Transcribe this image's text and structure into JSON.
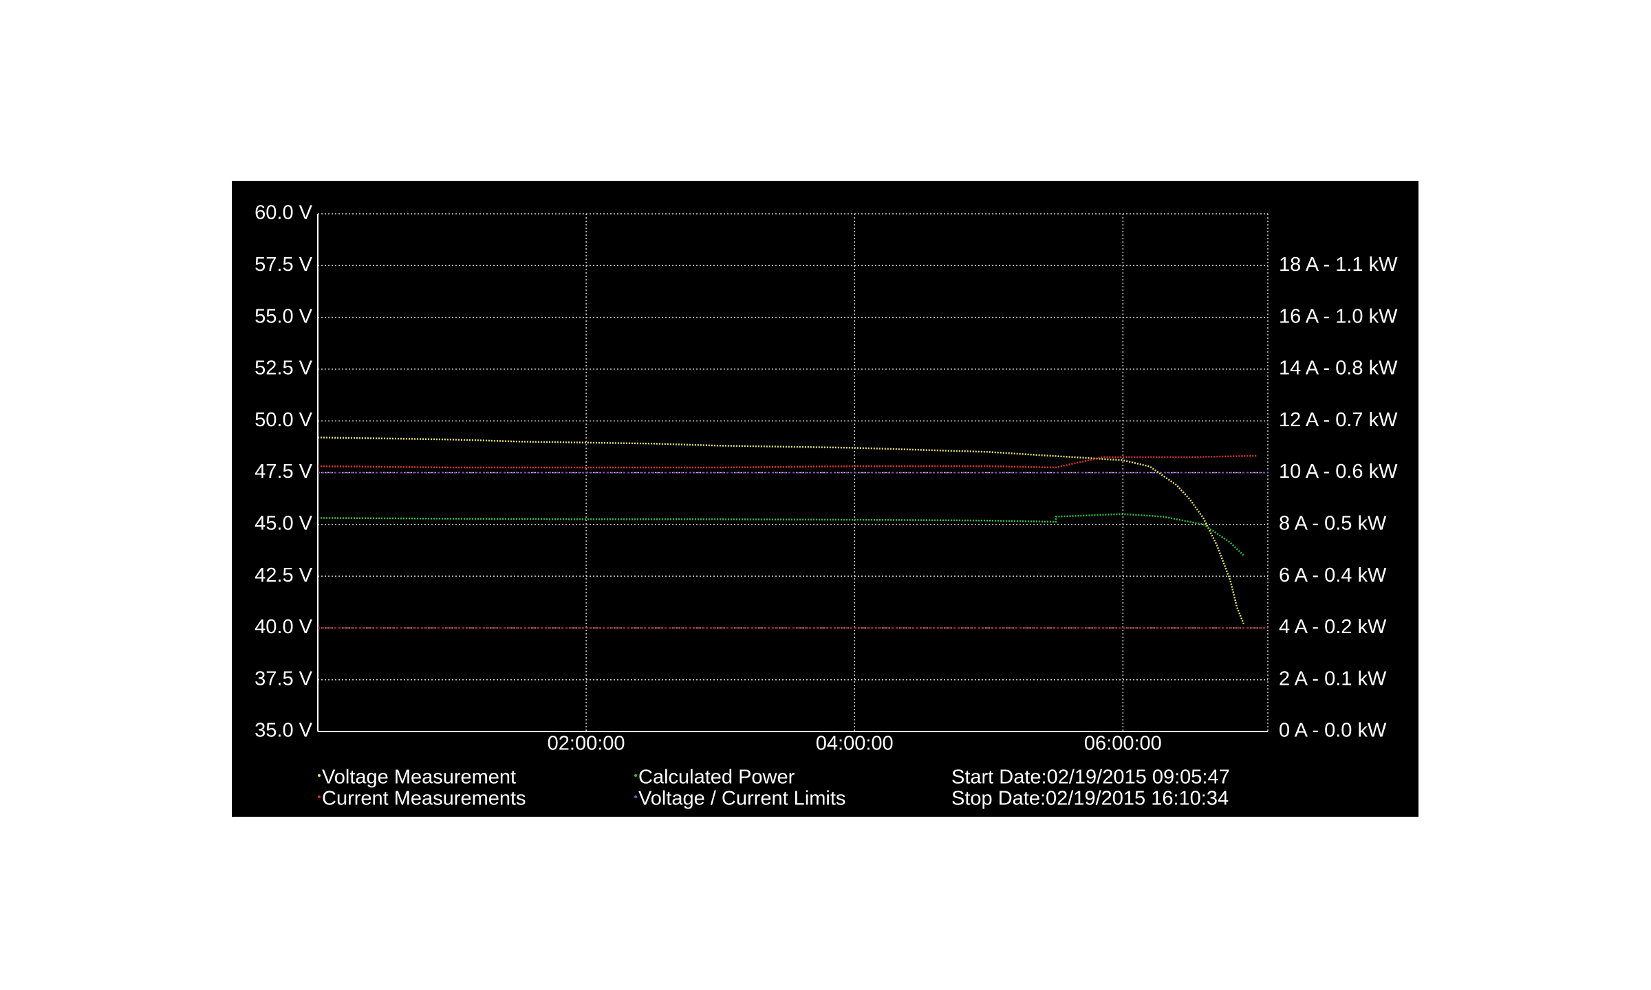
{
  "chart_data": {
    "type": "line",
    "xlim": [
      0,
      7.08
    ],
    "xticks": [
      {
        "value": 2,
        "label": "02:00:00"
      },
      {
        "value": 4,
        "label": "04:00:00"
      },
      {
        "value": 6,
        "label": "06:00:00"
      }
    ],
    "ylim": [
      35,
      60
    ],
    "yticks": [
      {
        "value": 35,
        "label": "35.0 V"
      },
      {
        "value": 37.5,
        "label": "37.5 V"
      },
      {
        "value": 40,
        "label": "40.0 V"
      },
      {
        "value": 42.5,
        "label": "42.5 V"
      },
      {
        "value": 45,
        "label": "45.0 V"
      },
      {
        "value": 47.5,
        "label": "47.5 V"
      },
      {
        "value": 50,
        "label": "50.0 V"
      },
      {
        "value": 52.5,
        "label": "52.5 V"
      },
      {
        "value": 55,
        "label": "55.0 V"
      },
      {
        "value": 57.5,
        "label": "57.5 V"
      },
      {
        "value": 60,
        "label": "60.0 V"
      }
    ],
    "y2lim": [
      0,
      20
    ],
    "y2ticks": [
      {
        "value": 0,
        "label": "0 A - 0.0 kW"
      },
      {
        "value": 2,
        "label": "2 A - 0.1 kW"
      },
      {
        "value": 4,
        "label": "4 A - 0.2 kW"
      },
      {
        "value": 6,
        "label": "6 A - 0.4 kW"
      },
      {
        "value": 8,
        "label": "8 A - 0.5 kW"
      },
      {
        "value": 10,
        "label": "10 A - 0.6 kW"
      },
      {
        "value": 12,
        "label": "12 A - 0.7 kW"
      },
      {
        "value": 14,
        "label": "14 A - 0.8 kW"
      },
      {
        "value": 16,
        "label": "16 A - 1.0 kW"
      },
      {
        "value": 18,
        "label": "18 A - 1.1 kW"
      }
    ],
    "grid": true,
    "series": [
      {
        "name": "Voltage Measurement",
        "color": "#e8e070",
        "x": [
          0,
          0.5,
          1,
          1.5,
          2,
          2.5,
          3,
          3.5,
          4,
          4.5,
          5,
          5.5,
          6,
          6.2,
          6.4,
          6.5,
          6.6,
          6.7,
          6.8,
          6.85,
          6.9
        ],
        "values": [
          49.2,
          49.15,
          49.1,
          49.0,
          48.95,
          48.9,
          48.8,
          48.75,
          48.7,
          48.6,
          48.5,
          48.3,
          48.1,
          47.8,
          46.9,
          46.2,
          45.3,
          44.0,
          42.3,
          41.0,
          40.2
        ]
      },
      {
        "name": "Current Measurements",
        "color": "#e03030",
        "axis": "y2",
        "x": [
          0,
          1,
          2,
          3,
          4,
          5,
          5.5,
          5.85,
          6,
          6.5,
          7.0
        ],
        "values": [
          10.25,
          10.2,
          10.2,
          10.2,
          10.25,
          10.25,
          10.2,
          10.6,
          10.6,
          10.6,
          10.65
        ]
      },
      {
        "name": "Calculated Power",
        "color": "#30c040",
        "axis": "y2",
        "x": [
          0,
          1,
          2,
          3,
          4,
          5,
          5.5,
          5.5,
          6,
          6.3,
          6.6,
          6.8,
          6.9
        ],
        "values": [
          8.25,
          8.22,
          8.2,
          8.2,
          8.18,
          8.15,
          8.1,
          8.3,
          8.4,
          8.3,
          8.0,
          7.3,
          6.8
        ]
      }
    ],
    "limits": {
      "name": "Voltage / Current Limits",
      "values": [
        47.5,
        40
      ],
      "colors": [
        "#8a4fc0",
        "#d03030"
      ]
    },
    "annotations": [
      "Start Date:02/19/2015 09:05:47",
      "Stop Date:02/19/2015 16:10:34"
    ]
  }
}
